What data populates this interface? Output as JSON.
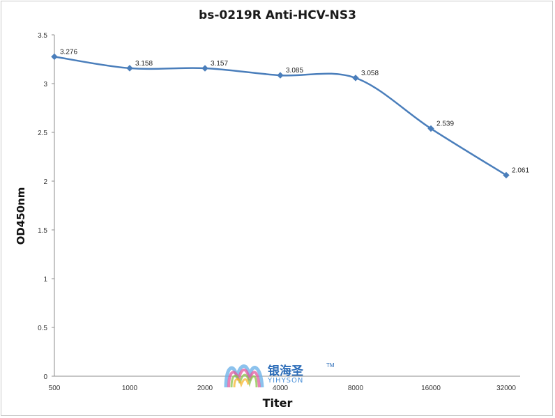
{
  "chart_data": {
    "type": "line",
    "title": "bs-0219R Anti-HCV-NS3",
    "xlabel": "Titer",
    "ylabel": "OD450nm",
    "categories": [
      "500",
      "1000",
      "2000",
      "4000",
      "8000",
      "16000",
      "32000"
    ],
    "series": [
      {
        "values": [
          3.276,
          3.158,
          3.157,
          3.085,
          3.058,
          2.539,
          2.061
        ],
        "color": "#4a7ebb"
      }
    ],
    "data_labels": [
      "3.276",
      "3.158",
      "3.157",
      "3.085",
      "3.058",
      "2.539",
      "2.061"
    ],
    "yticks": [
      "0",
      "0.5",
      "1",
      "1.5",
      "2",
      "2.5",
      "3",
      "3.5"
    ],
    "ylim": [
      0,
      3.5
    ],
    "grid": false,
    "legend": "none"
  },
  "watermark": {
    "text_cn": "银海圣",
    "trademark": "TM",
    "text_en": "YIHYSON"
  }
}
